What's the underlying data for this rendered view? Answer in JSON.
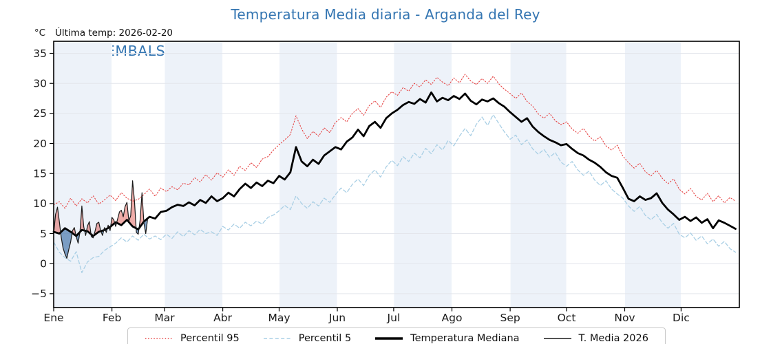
{
  "header": {
    "title": "Temperatura Media diaria - Arganda del Rey",
    "y_axis_unit": "°C",
    "last_temp_label": "Última temp: 2026-02-20",
    "watermark": "WWW.EMBALSES.NET"
  },
  "colors": {
    "title": "#3576b2",
    "watermark": "#3576b2",
    "band": "#edf2f9",
    "grid_horizontal": "#e4e6ec",
    "grid_vertical": "#ffffff",
    "axis": "#000000",
    "tick_label": "#1a1a1a",
    "legend_border": "#c9c9c9"
  },
  "chart_data": {
    "type": "line",
    "title": "Temperatura Media diaria - Arganda del Rey",
    "xlabel": "",
    "ylabel": "°C",
    "ylim": [
      -7.3,
      37
    ],
    "yticks": [
      -5,
      0,
      5,
      10,
      15,
      20,
      25,
      30,
      35
    ],
    "ytick_labels": [
      "−5",
      "0",
      "5",
      "10",
      "15",
      "20",
      "25",
      "30",
      "35"
    ],
    "days_in_year": 365,
    "month_labels": [
      "Ene",
      "Feb",
      "Mar",
      "Abr",
      "May",
      "Jun",
      "Jul",
      "Ago",
      "Sep",
      "Oct",
      "Nov",
      "Dic"
    ],
    "month_start_days": [
      0,
      31,
      59,
      90,
      120,
      151,
      181,
      212,
      243,
      273,
      304,
      334
    ],
    "shaded_months": [
      0,
      2,
      4,
      6,
      8,
      10
    ],
    "grid": true,
    "legend_position": "bottom",
    "series": [
      {
        "name": "Percentil 95",
        "color": "#e64545",
        "style": "dotted",
        "width": 1.1,
        "x_start": 0,
        "x_step": 3,
        "values": [
          9.8,
          10.3,
          9.2,
          10.9,
          9.6,
          10.8,
          10.1,
          11.3,
          9.9,
          10.6,
          11.4,
          10.5,
          11.8,
          10.9,
          10.4,
          10.7,
          11.5,
          12.4,
          11.2,
          12.6,
          12.0,
          12.8,
          12.3,
          13.4,
          13.1,
          14.3,
          13.6,
          14.8,
          13.9,
          15.1,
          14.4,
          15.6,
          14.7,
          16.2,
          15.5,
          16.8,
          16.0,
          17.4,
          17.8,
          18.9,
          19.8,
          20.6,
          21.5,
          24.6,
          22.4,
          20.8,
          22.0,
          21.2,
          22.6,
          21.8,
          23.5,
          24.3,
          23.6,
          25.0,
          25.8,
          24.7,
          26.3,
          27.1,
          26.0,
          27.7,
          28.6,
          28.0,
          29.3,
          28.7,
          30.0,
          29.4,
          30.6,
          29.8,
          31.0,
          30.2,
          29.6,
          30.9,
          30.1,
          31.5,
          30.4,
          29.8,
          30.8,
          30.0,
          31.2,
          29.9,
          29.0,
          28.3,
          27.5,
          28.4,
          27.0,
          26.2,
          24.9,
          24.2,
          25.0,
          23.8,
          23.1,
          23.6,
          22.4,
          21.7,
          22.5,
          21.2,
          20.4,
          21.1,
          19.6,
          18.9,
          19.7,
          17.9,
          16.8,
          15.9,
          16.7,
          15.3,
          14.6,
          15.5,
          14.2,
          13.3,
          14.1,
          12.4,
          11.6,
          12.5,
          11.2,
          10.6,
          11.7,
          10.3,
          11.3,
          10.1,
          11.0,
          10.4
        ]
      },
      {
        "name": "Percentil 5",
        "color": "#a9cfe5",
        "style": "dashed",
        "width": 1.3,
        "x_start": 0,
        "x_step": 3,
        "values": [
          3.6,
          1.9,
          1.0,
          0.4,
          2.0,
          -1.5,
          0.3,
          1.0,
          1.2,
          2.2,
          2.8,
          3.4,
          4.3,
          3.6,
          4.6,
          3.9,
          4.9,
          4.1,
          4.6,
          4.0,
          4.9,
          4.2,
          5.3,
          4.5,
          5.5,
          4.8,
          5.7,
          5.0,
          5.3,
          4.7,
          6.2,
          5.6,
          6.6,
          5.9,
          6.9,
          6.3,
          7.1,
          6.6,
          7.7,
          8.1,
          8.8,
          9.7,
          9.0,
          11.3,
          10.0,
          9.2,
          10.3,
          9.6,
          10.9,
          10.2,
          11.5,
          12.6,
          11.8,
          13.2,
          14.1,
          13.0,
          14.7,
          15.6,
          14.4,
          16.1,
          17.2,
          16.3,
          17.8,
          17.0,
          18.4,
          17.6,
          19.2,
          18.3,
          19.8,
          18.9,
          20.5,
          19.6,
          21.2,
          22.5,
          21.3,
          23.2,
          24.4,
          23.0,
          24.8,
          23.3,
          21.9,
          20.7,
          21.4,
          19.8,
          20.6,
          19.1,
          18.2,
          19.0,
          17.7,
          18.5,
          16.9,
          16.2,
          17.0,
          15.6,
          14.7,
          15.4,
          13.9,
          13.0,
          13.8,
          12.4,
          11.6,
          10.9,
          9.6,
          8.7,
          9.5,
          8.0,
          7.3,
          8.2,
          6.8,
          5.9,
          6.7,
          4.9,
          4.3,
          5.1,
          3.9,
          4.6,
          3.3,
          4.1,
          2.9,
          3.7,
          2.5,
          1.9
        ]
      },
      {
        "name": "Temperatura Mediana",
        "color": "#000000",
        "style": "solid",
        "width": 2.8,
        "x_start": 0,
        "x_step": 3,
        "values": [
          5.3,
          5.0,
          5.9,
          5.3,
          4.6,
          5.6,
          5.4,
          4.6,
          5.3,
          5.6,
          6.1,
          6.9,
          6.4,
          7.3,
          6.2,
          5.7,
          7.0,
          7.8,
          7.5,
          8.6,
          8.8,
          9.4,
          9.8,
          9.6,
          10.2,
          9.7,
          10.6,
          10.1,
          11.2,
          10.4,
          10.9,
          11.8,
          11.2,
          12.4,
          13.3,
          12.6,
          13.5,
          12.9,
          13.8,
          13.4,
          14.6,
          14.0,
          15.2,
          19.4,
          17.0,
          16.2,
          17.3,
          16.6,
          18.0,
          18.7,
          19.4,
          19.0,
          20.3,
          21.0,
          22.3,
          21.2,
          22.9,
          23.6,
          22.6,
          24.2,
          25.0,
          25.6,
          26.4,
          26.9,
          26.6,
          27.4,
          26.8,
          28.5,
          27.0,
          27.6,
          27.2,
          27.9,
          27.4,
          28.3,
          27.1,
          26.5,
          27.3,
          27.0,
          27.5,
          26.7,
          26.1,
          25.2,
          24.4,
          23.6,
          24.2,
          22.8,
          21.9,
          21.2,
          20.6,
          20.2,
          19.7,
          19.9,
          19.1,
          18.4,
          18.0,
          17.3,
          16.8,
          16.1,
          15.2,
          14.6,
          14.3,
          12.6,
          10.8,
          10.4,
          11.2,
          10.6,
          10.9,
          11.7,
          10.1,
          9.0,
          8.2,
          7.3,
          7.8,
          7.1,
          7.7,
          6.8,
          7.4,
          5.9,
          7.2,
          6.8,
          6.3,
          5.8
        ]
      },
      {
        "name": "T. Media 2026",
        "color": "#1a1a1a",
        "style": "solid",
        "width": 1.2,
        "x_start": 0,
        "x_step": 1,
        "values": [
          5.0,
          8.2,
          9.4,
          7.0,
          4.4,
          2.6,
          1.6,
          0.9,
          2.3,
          3.6,
          5.5,
          6.0,
          4.5,
          3.4,
          5.3,
          9.6,
          6.1,
          4.7,
          6.3,
          7.0,
          4.5,
          4.3,
          5.4,
          6.7,
          6.9,
          5.5,
          4.7,
          6.0,
          5.2,
          6.4,
          5.5,
          7.7,
          7.3,
          6.2,
          7.4,
          8.6,
          8.9,
          7.8,
          9.5,
          10.2,
          7.1,
          8.0,
          13.8,
          10.5,
          5.2,
          4.9,
          7.2,
          11.8,
          6.8,
          5.0,
          7.4
        ],
        "anomaly_fill": {
          "reference": "Temperatura Mediana",
          "above_color": "rgba(220,60,50,0.42)",
          "below_color": "rgba(45,100,160,0.6)"
        }
      }
    ]
  }
}
